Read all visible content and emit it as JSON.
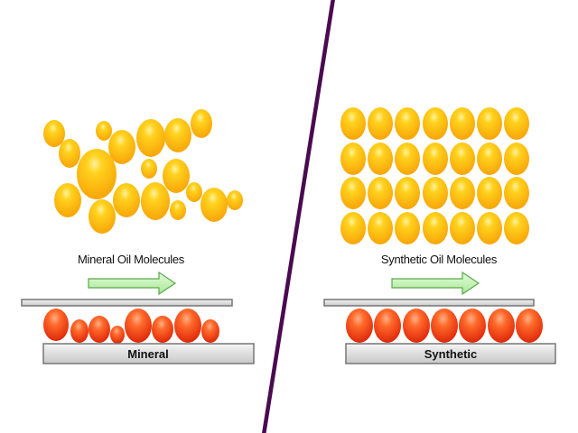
{
  "left": {
    "title": "Mineral Oil Molecules",
    "plate_label": "Mineral"
  },
  "right": {
    "title": "Synthetic Oil Molecules",
    "plate_label": "Synthetic"
  },
  "colors": {
    "divider": "#4a0a50",
    "molecule_yellow": "#fbb714",
    "molecule_red": "#f0441a",
    "arrow": "#b8f0a8",
    "plate": "#d8d8d8"
  }
}
